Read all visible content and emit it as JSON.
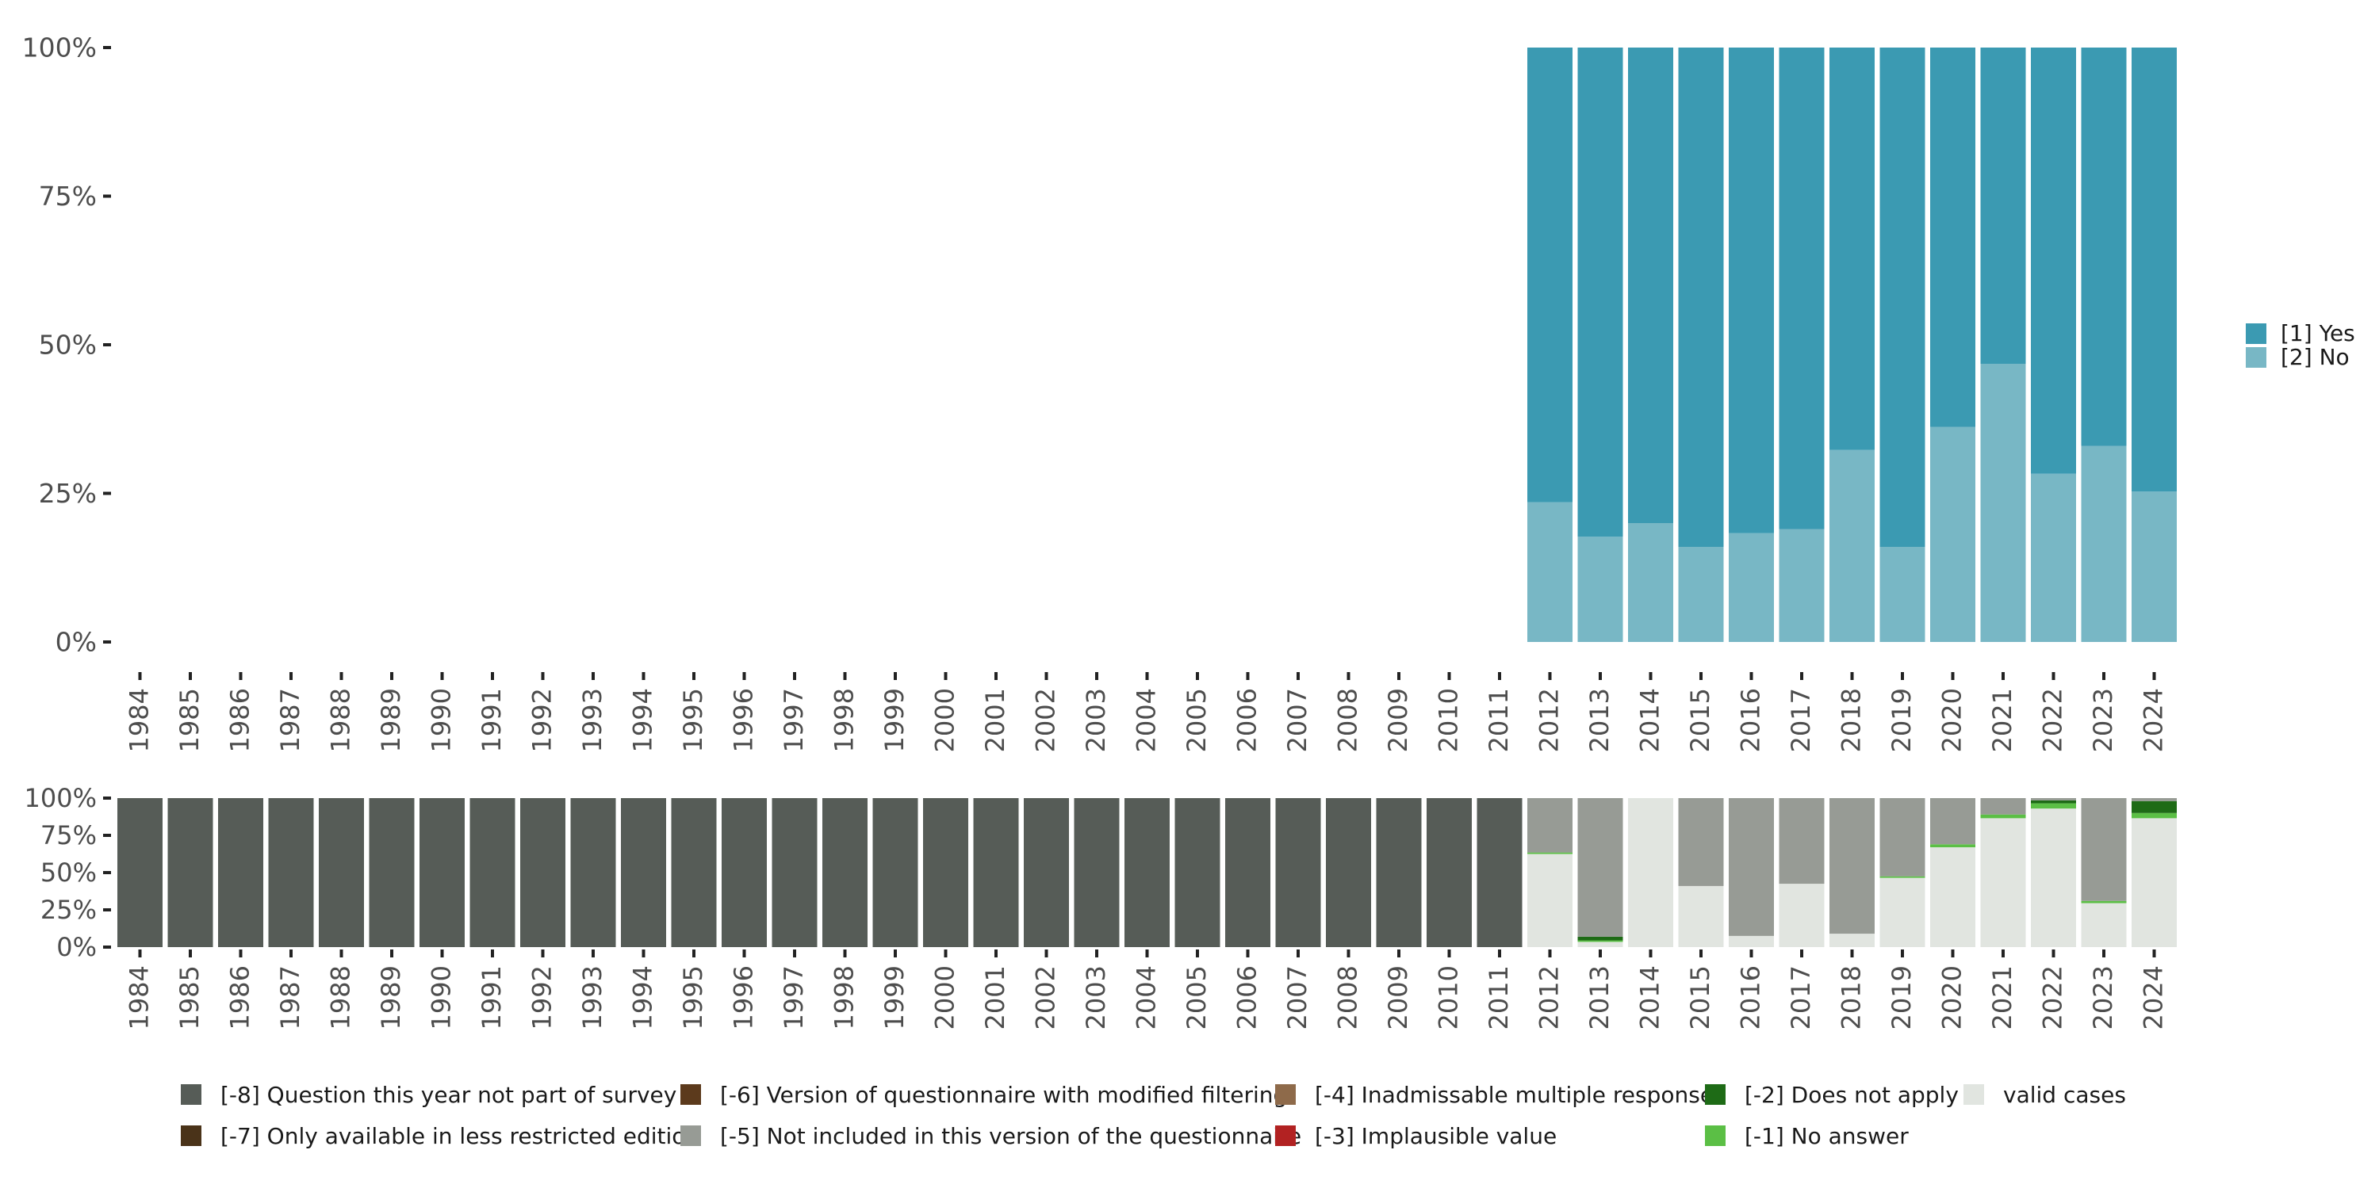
{
  "chart_data": [
    {
      "type": "bar",
      "stacked": true,
      "percent": true,
      "categories": [
        "1984",
        "1985",
        "1986",
        "1987",
        "1988",
        "1989",
        "1990",
        "1991",
        "1992",
        "1993",
        "1994",
        "1995",
        "1996",
        "1997",
        "1998",
        "1999",
        "2000",
        "2001",
        "2002",
        "2003",
        "2004",
        "2005",
        "2006",
        "2007",
        "2008",
        "2009",
        "2010",
        "2011",
        "2012",
        "2013",
        "2014",
        "2015",
        "2016",
        "2017",
        "2018",
        "2019",
        "2020",
        "2021",
        "2022",
        "2023",
        "2024"
      ],
      "y_ticks": [
        "0%",
        "25%",
        "50%",
        "75%",
        "100%"
      ],
      "ylim": [
        0,
        100
      ],
      "legend_position": "right",
      "series": [
        {
          "name": "[2] No",
          "color": "#78b7c5",
          "values": [
            null,
            null,
            null,
            null,
            null,
            null,
            null,
            null,
            null,
            null,
            null,
            null,
            null,
            null,
            null,
            null,
            null,
            null,
            null,
            null,
            null,
            null,
            null,
            null,
            null,
            null,
            null,
            null,
            23.5,
            17.7,
            20,
            16,
            18.3,
            19,
            32.3,
            16,
            36.2,
            46.8,
            28.3,
            33,
            25.3
          ]
        },
        {
          "name": "[1] Yes",
          "color": "#3b9ab2",
          "values": [
            null,
            null,
            null,
            null,
            null,
            null,
            null,
            null,
            null,
            null,
            null,
            null,
            null,
            null,
            null,
            null,
            null,
            null,
            null,
            null,
            null,
            null,
            null,
            null,
            null,
            null,
            null,
            null,
            76.5,
            82.3,
            80,
            84,
            81.7,
            81,
            67.7,
            84,
            63.8,
            53.2,
            71.7,
            67,
            74.7
          ]
        }
      ]
    },
    {
      "type": "bar",
      "stacked": true,
      "percent": true,
      "categories": [
        "1984",
        "1985",
        "1986",
        "1987",
        "1988",
        "1989",
        "1990",
        "1991",
        "1992",
        "1993",
        "1994",
        "1995",
        "1996",
        "1997",
        "1998",
        "1999",
        "2000",
        "2001",
        "2002",
        "2003",
        "2004",
        "2005",
        "2006",
        "2007",
        "2008",
        "2009",
        "2010",
        "2011",
        "2012",
        "2013",
        "2014",
        "2015",
        "2016",
        "2017",
        "2018",
        "2019",
        "2020",
        "2021",
        "2022",
        "2023",
        "2024"
      ],
      "y_ticks": [
        "0%",
        "25%",
        "50%",
        "75%",
        "100%"
      ],
      "ylim": [
        0,
        100
      ],
      "legend_position": "bottom",
      "series": [
        {
          "name": "valid cases",
          "color": "#e1e5e0",
          "values": [
            0,
            0,
            0,
            0,
            0,
            0,
            0,
            0,
            0,
            0,
            0,
            0,
            0,
            0,
            0,
            0,
            0,
            0,
            0,
            0,
            0,
            0,
            0,
            0,
            0,
            0,
            0,
            0,
            62.5,
            3.5,
            100,
            41,
            7.5,
            42.5,
            9,
            46.5,
            67,
            86.5,
            93,
            29.5,
            86.5
          ]
        },
        {
          "name": "[-1] No answer",
          "color": "#5bbf45",
          "values": [
            0,
            0,
            0,
            0,
            0,
            0,
            0,
            0,
            0,
            0,
            0,
            0,
            0,
            0,
            0,
            0,
            0,
            0,
            0,
            0,
            0,
            0,
            0,
            0,
            0,
            0,
            0,
            0,
            1,
            1,
            0,
            0,
            0,
            0,
            0,
            1,
            2,
            2.5,
            3.5,
            1.5,
            3.5
          ]
        },
        {
          "name": "[-2] Does not apply",
          "color": "#1e6b16",
          "values": [
            0,
            0,
            0,
            0,
            0,
            0,
            0,
            0,
            0,
            0,
            0,
            0,
            0,
            0,
            0,
            0,
            0,
            0,
            0,
            0,
            0,
            0,
            0,
            0,
            0,
            0,
            0,
            0,
            0,
            2.5,
            0,
            0,
            0,
            0,
            0,
            0,
            0,
            0,
            2,
            0,
            8
          ]
        },
        {
          "name": "[-3] Implausible value",
          "color": "#b22222",
          "values": [
            0,
            0,
            0,
            0,
            0,
            0,
            0,
            0,
            0,
            0,
            0,
            0,
            0,
            0,
            0,
            0,
            0,
            0,
            0,
            0,
            0,
            0,
            0,
            0,
            0,
            0,
            0,
            0,
            0,
            0,
            0,
            0,
            0,
            0,
            0,
            0,
            0,
            0,
            0,
            0,
            0
          ]
        },
        {
          "name": "[-4] Inadmissable multiple response",
          "color": "#8e6a4a",
          "values": [
            0,
            0,
            0,
            0,
            0,
            0,
            0,
            0,
            0,
            0,
            0,
            0,
            0,
            0,
            0,
            0,
            0,
            0,
            0,
            0,
            0,
            0,
            0,
            0,
            0,
            0,
            0,
            0,
            0,
            0,
            0,
            0,
            0,
            0,
            0,
            0,
            0,
            0,
            0,
            0,
            0
          ]
        },
        {
          "name": "[-5] Not included in this version of the questionnaire",
          "color": "#979b95",
          "values": [
            0,
            0,
            0,
            0,
            0,
            0,
            0,
            0,
            0,
            0,
            0,
            0,
            0,
            0,
            0,
            0,
            0,
            0,
            0,
            0,
            0,
            0,
            0,
            0,
            0,
            0,
            0,
            0,
            36.5,
            93,
            0,
            59,
            92.5,
            57.5,
            91,
            52.5,
            31,
            11,
            1.5,
            69,
            2
          ]
        },
        {
          "name": "[-6] Version of questionnaire with modified filtering",
          "color": "#5c3a1c",
          "values": [
            0,
            0,
            0,
            0,
            0,
            0,
            0,
            0,
            0,
            0,
            0,
            0,
            0,
            0,
            0,
            0,
            0,
            0,
            0,
            0,
            0,
            0,
            0,
            0,
            0,
            0,
            0,
            0,
            0,
            0,
            0,
            0,
            0,
            0,
            0,
            0,
            0,
            0,
            0,
            0,
            0
          ]
        },
        {
          "name": "[-7] Only available in less restricted edition",
          "color": "#4a3319",
          "values": [
            0,
            0,
            0,
            0,
            0,
            0,
            0,
            0,
            0,
            0,
            0,
            0,
            0,
            0,
            0,
            0,
            0,
            0,
            0,
            0,
            0,
            0,
            0,
            0,
            0,
            0,
            0,
            0,
            0,
            0,
            0,
            0,
            0,
            0,
            0,
            0,
            0,
            0,
            0,
            0,
            0
          ]
        },
        {
          "name": "[-8] Question this year not part of survey",
          "color": "#565c57",
          "values": [
            100,
            100,
            100,
            100,
            100,
            100,
            100,
            100,
            100,
            100,
            100,
            100,
            100,
            100,
            100,
            100,
            100,
            100,
            100,
            100,
            100,
            100,
            100,
            100,
            100,
            100,
            100,
            100,
            0,
            0,
            0,
            0,
            0,
            0,
            0,
            0,
            0,
            0,
            0,
            0,
            0
          ]
        }
      ]
    }
  ],
  "legend_top": [
    {
      "label": "[1] Yes",
      "color": "#3b9ab2"
    },
    {
      "label": "[2] No",
      "color": "#78b7c5"
    }
  ],
  "legend_bottom": [
    {
      "label": "[-8] Question this year not part of survey",
      "color": "#565c57"
    },
    {
      "label": "[-7] Only available in less restricted edition",
      "color": "#4a3319"
    },
    {
      "label": "[-6] Version of questionnaire with modified filtering",
      "color": "#5c3a1c"
    },
    {
      "label": "[-5] Not included in this version of the questionnaire",
      "color": "#979b95"
    },
    {
      "label": "[-4] Inadmissable multiple response",
      "color": "#8e6a4a"
    },
    {
      "label": "[-3] Implausible value",
      "color": "#b22222"
    },
    {
      "label": "[-2] Does not apply",
      "color": "#1e6b16"
    },
    {
      "label": "[-1] No answer",
      "color": "#5bbf45"
    },
    {
      "label": "valid cases",
      "color": "#e1e5e0"
    }
  ]
}
